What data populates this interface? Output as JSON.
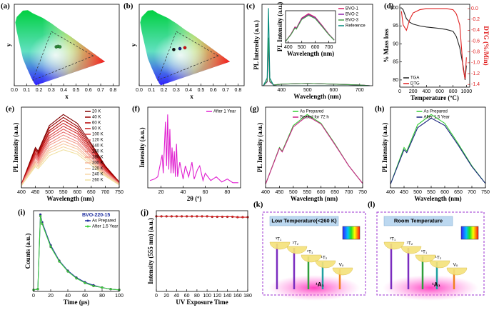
{
  "chart_data": [
    {
      "type": "cie",
      "panel": "(a)",
      "xlabel": "x",
      "ylabel": "y",
      "xlim": [
        0,
        0.85
      ],
      "ylim": [
        0,
        0.9
      ],
      "xticks": [
        {
          "value": 0,
          "label": "0.0"
        },
        {
          "value": 0.1,
          "label": "0.1"
        },
        {
          "value": 0.2,
          "label": "0.2"
        },
        {
          "value": 0.3,
          "label": "0.3"
        },
        {
          "value": 0.4,
          "label": "0.4"
        },
        {
          "value": 0.5,
          "label": "0.5"
        },
        {
          "value": 0.6,
          "label": "0.6"
        },
        {
          "value": 0.7,
          "label": "0.7"
        },
        {
          "value": 0.8,
          "label": "0.8"
        }
      ],
      "series": [
        {
          "color": "#2e8b3a",
          "x": [
            0.34,
            0.355,
            0.37
          ],
          "values": [
            0.43,
            0.435,
            0.43
          ]
        }
      ]
    },
    {
      "type": "cie",
      "panel": "(b)",
      "xlabel": "x",
      "ylabel": "y",
      "xlim": [
        0,
        0.85
      ],
      "ylim": [
        0,
        0.9
      ],
      "xticks": [
        {
          "value": 0,
          "label": "0.0"
        },
        {
          "value": 0.1,
          "label": "0.1"
        },
        {
          "value": 0.2,
          "label": "0.2"
        },
        {
          "value": 0.3,
          "label": "0.3"
        },
        {
          "value": 0.4,
          "label": "0.4"
        },
        {
          "value": 0.5,
          "label": "0.5"
        },
        {
          "value": 0.6,
          "label": "0.6"
        },
        {
          "value": 0.7,
          "label": "0.7"
        },
        {
          "value": 0.8,
          "label": "0.8"
        }
      ],
      "series": [
        {
          "color": "#111111",
          "x": [
            0.28
          ],
          "values": [
            0.4
          ]
        },
        {
          "color": "#1a237e",
          "x": [
            0.33
          ],
          "values": [
            0.41
          ]
        },
        {
          "color": "#d01010",
          "x": [
            0.37
          ],
          "values": [
            0.42
          ]
        }
      ]
    },
    {
      "type": "line",
      "panel": "(c)",
      "xlabel": "Wavelength (nm)",
      "ylabel": "PL Intensity (a.u.)",
      "xlim": [
        325,
        750
      ],
      "ylim": [
        0,
        1.05
      ],
      "xticks": [
        400,
        500,
        600,
        700
      ],
      "legend": "upper right",
      "x": [
        330,
        345,
        350,
        355,
        370,
        400,
        500,
        600,
        700,
        740
      ],
      "series": [
        {
          "name": "BVO-1",
          "color": "#d81b60",
          "values": [
            0,
            0.05,
            0.55,
            0.05,
            0.01,
            0.02,
            0.03,
            0.02,
            0.01,
            0
          ]
        },
        {
          "name": "BVO-2",
          "color": "#8e24aa",
          "values": [
            0,
            0.05,
            0.58,
            0.05,
            0.01,
            0.02,
            0.03,
            0.02,
            0.01,
            0
          ]
        },
        {
          "name": "BVO-3",
          "color": "#43a047",
          "values": [
            0,
            0.06,
            0.62,
            0.06,
            0.01,
            0.02,
            0.03,
            0.02,
            0.01,
            0
          ]
        },
        {
          "name": "Reference",
          "color": "#00897b",
          "values": [
            0,
            0.1,
            1.0,
            0.1,
            0,
            0,
            0,
            0,
            0,
            0
          ]
        }
      ],
      "inset": {
        "type": "line",
        "xlabel": "Wavelength (nm)",
        "ylabel": "PL Intensity (a.u.)",
        "xlim": [
          380,
          750
        ],
        "ylim": [
          0,
          1.1
        ],
        "xticks": [
          400,
          500,
          600,
          700
        ],
        "x": [
          380,
          420,
          450,
          460,
          500,
          550,
          600,
          650,
          700,
          740
        ],
        "series": [
          {
            "color": "#d81b60",
            "values": [
              0.05,
              0.3,
              0.55,
              0.5,
              0.85,
              1.0,
              0.88,
              0.6,
              0.3,
              0.1
            ]
          },
          {
            "color": "#8e24aa",
            "values": [
              0.05,
              0.29,
              0.53,
              0.49,
              0.83,
              0.97,
              0.86,
              0.58,
              0.29,
              0.1
            ]
          },
          {
            "color": "#43a047",
            "values": [
              0.05,
              0.28,
              0.51,
              0.47,
              0.8,
              0.94,
              0.83,
              0.56,
              0.28,
              0.09
            ]
          }
        ]
      }
    },
    {
      "type": "line",
      "panel": "(d)",
      "xlabel": "Temperature (ºC)",
      "ylabel": "% Mass loss",
      "y2label": "DTG (%/Min)",
      "xlim": [
        0,
        1050
      ],
      "ylim": [
        78,
        101
      ],
      "y2lim": [
        -1.45,
        0.08
      ],
      "legend": "lower left",
      "xticks": [
        0,
        200,
        400,
        600,
        800,
        1000
      ],
      "yticks": [
        80,
        85,
        90,
        95,
        100
      ],
      "y2ticks": [
        {
          "value": 0,
          "label": "0.0"
        },
        {
          "value": -0.2,
          "label": "-0.2"
        },
        {
          "value": -0.4,
          "label": "-0.4"
        },
        {
          "value": -0.6,
          "label": "-0.6"
        },
        {
          "value": -0.8,
          "label": "-0.8"
        },
        {
          "value": -1,
          "label": "-1.0"
        },
        {
          "value": -1.2,
          "label": "-1.2"
        },
        {
          "value": -1.4,
          "label": "-1.4"
        }
      ],
      "x": [
        25,
        50,
        100,
        150,
        200,
        300,
        400,
        500,
        600,
        700,
        800,
        850,
        900,
        950,
        980,
        1000
      ],
      "series": [
        {
          "name": "TGA",
          "color": "#222222",
          "values": [
            100,
            99.5,
            97,
            96,
            95.5,
            95,
            94.7,
            94.5,
            94.3,
            94,
            93.5,
            92,
            89,
            84,
            80,
            84
          ]
        },
        {
          "name": "DTG",
          "color": "#e02020",
          "axis": "y2",
          "values": [
            -0.05,
            -0.3,
            -0.4,
            -0.2,
            -0.08,
            -0.02,
            0,
            0,
            0,
            0,
            -0.02,
            -0.1,
            -0.3,
            -1.1,
            -1.3,
            -0.9
          ]
        }
      ]
    },
    {
      "type": "line",
      "panel": "(e)",
      "xlabel": "Wavelength (nm)",
      "ylabel": "PL Intensity (a.u.)",
      "xlim": [
        400,
        750
      ],
      "ylim": [
        0,
        1.1
      ],
      "xticks": [
        400,
        450,
        500,
        550,
        600,
        650,
        700,
        750
      ],
      "legend": "upper right",
      "x": [
        400,
        450,
        460,
        500,
        550,
        600,
        650,
        700,
        750
      ],
      "series": [
        {
          "name": "20 K",
          "color": "#7f0000",
          "values": [
            0.05,
            0.55,
            0.5,
            0.85,
            1.0,
            0.88,
            0.6,
            0.3,
            0.08
          ]
        },
        {
          "name": "40 K",
          "color": "#990000",
          "values": [
            0.05,
            0.53,
            0.48,
            0.82,
            0.96,
            0.84,
            0.58,
            0.29,
            0.08
          ]
        },
        {
          "name": "60 K",
          "color": "#b30000",
          "values": [
            0.05,
            0.51,
            0.46,
            0.78,
            0.92,
            0.81,
            0.55,
            0.28,
            0.07
          ]
        },
        {
          "name": "80 K",
          "color": "#c81a1a",
          "values": [
            0.04,
            0.48,
            0.44,
            0.75,
            0.88,
            0.77,
            0.53,
            0.26,
            0.07
          ]
        },
        {
          "name": "100 K",
          "color": "#d63a3a",
          "values": [
            0.04,
            0.46,
            0.42,
            0.71,
            0.84,
            0.74,
            0.5,
            0.25,
            0.07
          ]
        },
        {
          "name": "120 K",
          "color": "#e05555",
          "values": [
            0.04,
            0.44,
            0.4,
            0.68,
            0.8,
            0.7,
            0.48,
            0.24,
            0.06
          ]
        },
        {
          "name": "140 K",
          "color": "#e87070",
          "values": [
            0.04,
            0.42,
            0.38,
            0.65,
            0.76,
            0.67,
            0.46,
            0.23,
            0.06
          ]
        },
        {
          "name": "160 K",
          "color": "#ee8a80",
          "values": [
            0.04,
            0.4,
            0.36,
            0.61,
            0.72,
            0.63,
            0.43,
            0.22,
            0.06
          ]
        },
        {
          "name": "180 K",
          "color": "#f2a090",
          "values": [
            0.03,
            0.37,
            0.34,
            0.58,
            0.68,
            0.6,
            0.41,
            0.2,
            0.05
          ]
        },
        {
          "name": "200 K",
          "color": "#f5b59a",
          "values": [
            0.03,
            0.35,
            0.32,
            0.54,
            0.64,
            0.56,
            0.38,
            0.19,
            0.05
          ]
        },
        {
          "name": "220 K",
          "color": "#f7c8a0",
          "values": [
            0.03,
            0.33,
            0.3,
            0.51,
            0.6,
            0.53,
            0.36,
            0.18,
            0.05
          ]
        },
        {
          "name": "240 K",
          "color": "#f8d8a8",
          "values": [
            0.03,
            0.31,
            0.28,
            0.48,
            0.56,
            0.49,
            0.34,
            0.17,
            0.04
          ]
        },
        {
          "name": "260 K",
          "color": "#f0e0a0",
          "values": [
            0.03,
            0.29,
            0.26,
            0.44,
            0.52,
            0.46,
            0.31,
            0.16,
            0.04
          ]
        }
      ]
    },
    {
      "type": "line",
      "panel": "(f)",
      "xlabel": "2θ (º)",
      "ylabel": "Intensity (a.u.)",
      "xlim": [
        8,
        92
      ],
      "ylim": [
        0,
        1.1
      ],
      "xticks": [
        20,
        40,
        60,
        80
      ],
      "legend": "upper right",
      "x": [
        10,
        14,
        17,
        19,
        21,
        22,
        24,
        25,
        26,
        27,
        28,
        29,
        30,
        31,
        32,
        33,
        34,
        35,
        37,
        40,
        42,
        45,
        48,
        50,
        53,
        55,
        58,
        60,
        65,
        70,
        75,
        80,
        85,
        90
      ],
      "series": [
        {
          "name": "After 1 Year",
          "color": "#e020d0",
          "values": [
            0.1,
            0.12,
            0.15,
            0.3,
            0.45,
            0.2,
            0.9,
            0.3,
            1.0,
            0.25,
            0.8,
            0.2,
            0.55,
            0.2,
            0.5,
            0.15,
            0.6,
            0.15,
            0.35,
            0.12,
            0.3,
            0.15,
            0.35,
            0.12,
            0.25,
            0.3,
            0.1,
            0.2,
            0.1,
            0.15,
            0.08,
            0.12,
            0.07,
            0.07
          ]
        }
      ]
    },
    {
      "type": "line",
      "panel": "(g)",
      "xlabel": "Wavelength (nm)",
      "ylabel": "PL Intensity (a.u.)",
      "xlim": [
        400,
        750
      ],
      "ylim": [
        0,
        1.1
      ],
      "xticks": [
        400,
        450,
        500,
        550,
        600,
        650,
        700,
        750
      ],
      "legend": "upper center",
      "x": [
        400,
        450,
        460,
        500,
        550,
        600,
        650,
        700,
        750
      ],
      "series": [
        {
          "name": "As Prepared",
          "color": "#33cc33",
          "values": [
            0.05,
            0.55,
            0.5,
            0.85,
            1.0,
            0.88,
            0.6,
            0.3,
            0.06
          ]
        },
        {
          "name": "Sealed for 72 h",
          "color": "#cc2288",
          "values": [
            0.05,
            0.54,
            0.49,
            0.83,
            0.98,
            0.87,
            0.59,
            0.3,
            0.06
          ]
        }
      ]
    },
    {
      "type": "line",
      "panel": "(h)",
      "xlabel": "Wavelength (nm)",
      "ylabel": "PL Intensity (a.u.)",
      "xlim": [
        400,
        750
      ],
      "ylim": [
        0,
        1.1
      ],
      "xticks": [
        400,
        450,
        500,
        550,
        600,
        650,
        700,
        750
      ],
      "legend": "upper center",
      "x": [
        400,
        450,
        460,
        500,
        550,
        600,
        650,
        700,
        750
      ],
      "series": [
        {
          "name": "As Prepared",
          "color": "#33cc33",
          "values": [
            0.05,
            0.55,
            0.5,
            0.86,
            1.0,
            0.88,
            0.6,
            0.3,
            0.06
          ]
        },
        {
          "name": "After 1.5 Year",
          "color": "#1a237e",
          "values": [
            0.05,
            0.52,
            0.48,
            0.82,
            0.95,
            0.85,
            0.58,
            0.29,
            0.06
          ]
        }
      ]
    },
    {
      "type": "line",
      "panel": "(i)",
      "xlabel": "Time (μs)",
      "ylabel": "Counts (a.u.)",
      "annotation": "BVO-220-15",
      "xlim": [
        0,
        100
      ],
      "ylim": [
        0,
        1.05
      ],
      "xticks": [
        0,
        20,
        40,
        60,
        80,
        100
      ],
      "legend": "upper right",
      "x": [
        0,
        5,
        8,
        10,
        20,
        30,
        40,
        50,
        60,
        70,
        80,
        90,
        100
      ],
      "series": [
        {
          "name": "As Prepared",
          "color": "#2030a0",
          "marker": "circle",
          "values": [
            0.02,
            0.03,
            1.0,
            0.9,
            0.6,
            0.4,
            0.27,
            0.18,
            0.12,
            0.08,
            0.05,
            0.03,
            0.02
          ]
        },
        {
          "name": "After 1.5 Year",
          "color": "#40d040",
          "marker": "circle",
          "values": [
            0.02,
            0.03,
            0.98,
            0.88,
            0.58,
            0.39,
            0.26,
            0.17,
            0.11,
            0.07,
            0.05,
            0.03,
            0.02
          ]
        }
      ]
    },
    {
      "type": "line",
      "panel": "(j)",
      "xlabel": "UV Exposure Time",
      "ylabel": "Intensity (555 nm) (a.u.)",
      "xlim": [
        0,
        180
      ],
      "ylim": [
        0,
        1
      ],
      "xticks": [
        0,
        20,
        40,
        60,
        80,
        100,
        120,
        140,
        160,
        180
      ],
      "x": [
        0,
        10,
        20,
        30,
        40,
        50,
        60,
        70,
        80,
        90,
        100,
        110,
        120,
        130,
        140,
        150,
        160,
        170,
        180
      ],
      "series": [
        {
          "color": "#e02020",
          "marker": "circle",
          "values": [
            0.93,
            0.93,
            0.93,
            0.93,
            0.93,
            0.93,
            0.93,
            0.93,
            0.93,
            0.93,
            0.93,
            0.925,
            0.925,
            0.925,
            0.925,
            0.925,
            0.92,
            0.92,
            0.92
          ]
        }
      ]
    }
  ],
  "diagrams": [
    {
      "panel": "(k)",
      "title": "Low Temperature(<260 K)",
      "levels": [
        "³T₁",
        "³T₂",
        "¹T₁",
        "¹T₂",
        "Vₒ"
      ],
      "ground": "¹A₁"
    },
    {
      "panel": "(l)",
      "title": "Room Temperature",
      "levels": [
        "³T₁",
        "³T₂",
        "¹T₁",
        "¹T₂",
        "Vₒ"
      ],
      "ground": "¹A₁"
    }
  ]
}
